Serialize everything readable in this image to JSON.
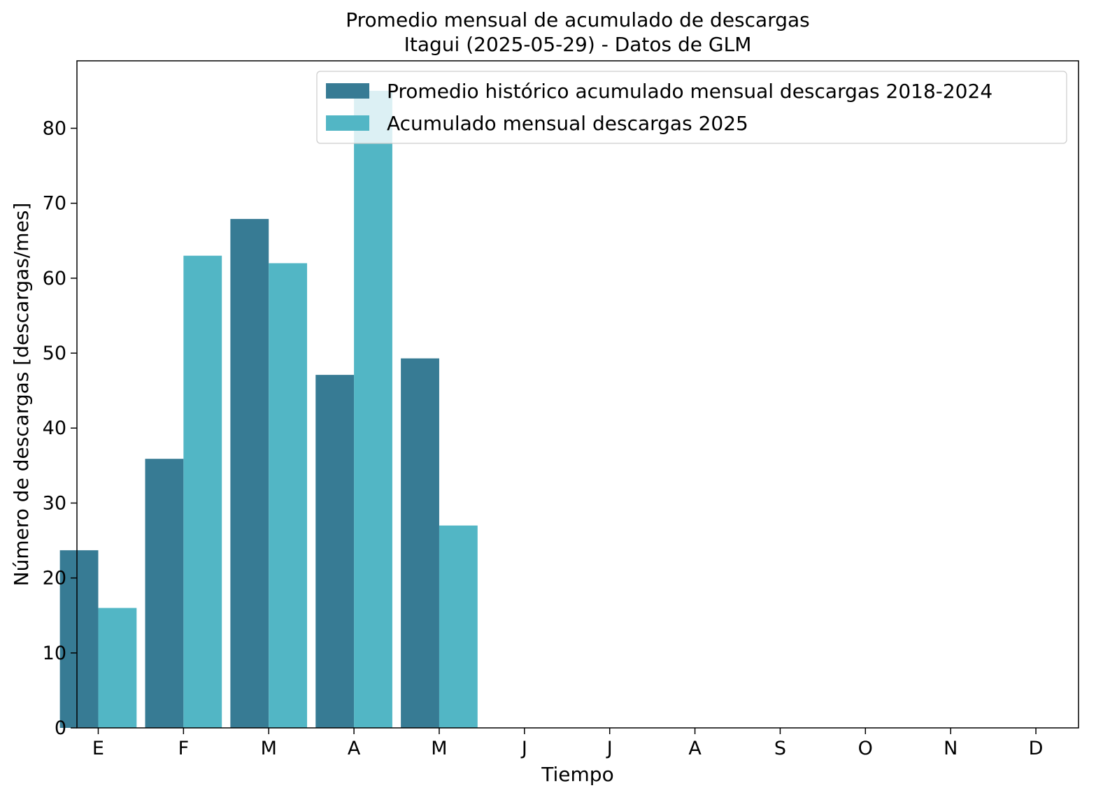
{
  "chart_data": {
    "type": "bar",
    "title": "Promedio mensual de acumulado de descargas",
    "subtitle": "Itagui (2025-05-29) - Datos de GLM",
    "xlabel": "Tiempo",
    "ylabel": "Número de descargas [descargas/mes]",
    "categories": [
      "E",
      "F",
      "M",
      "A",
      "M",
      "J",
      "J",
      "A",
      "S",
      "O",
      "N",
      "D"
    ],
    "series": [
      {
        "name": "Promedio histórico acumulado mensual descargas 2018-2024",
        "color": "#377b94",
        "values": [
          23.7,
          35.9,
          67.9,
          47.1,
          49.3,
          null,
          null,
          null,
          null,
          null,
          null,
          null
        ]
      },
      {
        "name": "Acumulado mensual descargas 2025",
        "color": "#52b6c5",
        "values": [
          16,
          63,
          62,
          85,
          27,
          null,
          null,
          null,
          null,
          null,
          null,
          null
        ]
      }
    ],
    "ylim": [
      0,
      89
    ],
    "yticks": [
      0,
      10,
      20,
      30,
      40,
      50,
      60,
      70,
      80
    ],
    "grid": false,
    "legend_position": "top-right"
  }
}
